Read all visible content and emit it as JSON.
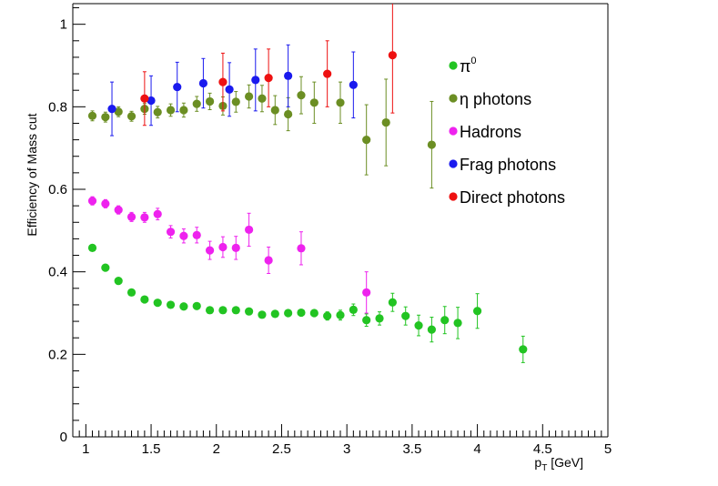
{
  "chart_data": {
    "type": "scatter",
    "title": "",
    "xlabel_main": "p",
    "xlabel_sub": "T",
    "xlabel_unit": "[GeV]",
    "ylabel": "Efficiency of Mass cut",
    "xlim": [
      0.9,
      5.0
    ],
    "ylim": [
      0,
      1.05
    ],
    "x_ticks": [
      1,
      1.5,
      2,
      2.5,
      3,
      3.5,
      4,
      4.5,
      5
    ],
    "x_tick_labels": [
      "1",
      "1.5",
      "2",
      "2.5",
      "3",
      "3.5",
      "4",
      "4.5",
      "5"
    ],
    "y_ticks": [
      0,
      0.2,
      0.4,
      0.6,
      0.8,
      1
    ],
    "y_tick_labels": [
      "0",
      "0.2",
      "0.4",
      "0.6",
      "0.8",
      "1"
    ],
    "legend_position": "top-right",
    "series": [
      {
        "name": "π⁰",
        "legend_label": "π",
        "legend_sup": "0",
        "color": "#22c422",
        "points": [
          {
            "x": 1.05,
            "y": 0.458,
            "err": 0.006
          },
          {
            "x": 1.15,
            "y": 0.41,
            "err": 0.006
          },
          {
            "x": 1.25,
            "y": 0.378,
            "err": 0.006
          },
          {
            "x": 1.35,
            "y": 0.35,
            "err": 0.006
          },
          {
            "x": 1.45,
            "y": 0.333,
            "err": 0.006
          },
          {
            "x": 1.55,
            "y": 0.325,
            "err": 0.006
          },
          {
            "x": 1.65,
            "y": 0.32,
            "err": 0.006
          },
          {
            "x": 1.75,
            "y": 0.316,
            "err": 0.006
          },
          {
            "x": 1.85,
            "y": 0.317,
            "err": 0.006
          },
          {
            "x": 1.95,
            "y": 0.307,
            "err": 0.006
          },
          {
            "x": 2.05,
            "y": 0.307,
            "err": 0.006
          },
          {
            "x": 2.15,
            "y": 0.307,
            "err": 0.006
          },
          {
            "x": 2.25,
            "y": 0.304,
            "err": 0.006
          },
          {
            "x": 2.35,
            "y": 0.296,
            "err": 0.007
          },
          {
            "x": 2.45,
            "y": 0.298,
            "err": 0.007
          },
          {
            "x": 2.55,
            "y": 0.3,
            "err": 0.008
          },
          {
            "x": 2.65,
            "y": 0.301,
            "err": 0.008
          },
          {
            "x": 2.75,
            "y": 0.3,
            "err": 0.009
          },
          {
            "x": 2.85,
            "y": 0.293,
            "err": 0.01
          },
          {
            "x": 2.95,
            "y": 0.295,
            "err": 0.012
          },
          {
            "x": 3.05,
            "y": 0.308,
            "err": 0.014
          },
          {
            "x": 3.15,
            "y": 0.283,
            "err": 0.015
          },
          {
            "x": 3.25,
            "y": 0.287,
            "err": 0.016
          },
          {
            "x": 3.35,
            "y": 0.326,
            "err": 0.022
          },
          {
            "x": 3.45,
            "y": 0.293,
            "err": 0.022
          },
          {
            "x": 3.55,
            "y": 0.27,
            "err": 0.025
          },
          {
            "x": 3.65,
            "y": 0.26,
            "err": 0.03
          },
          {
            "x": 3.75,
            "y": 0.283,
            "err": 0.033
          },
          {
            "x": 3.85,
            "y": 0.276,
            "err": 0.038
          },
          {
            "x": 4.0,
            "y": 0.305,
            "err": 0.042
          },
          {
            "x": 4.35,
            "y": 0.212,
            "err": 0.032
          }
        ]
      },
      {
        "name": "η photons",
        "legend_label": "η photons",
        "color": "#6b8e23",
        "points": [
          {
            "x": 1.05,
            "y": 0.778,
            "err": 0.012
          },
          {
            "x": 1.15,
            "y": 0.775,
            "err": 0.012
          },
          {
            "x": 1.25,
            "y": 0.788,
            "err": 0.012
          },
          {
            "x": 1.35,
            "y": 0.777,
            "err": 0.012
          },
          {
            "x": 1.45,
            "y": 0.795,
            "err": 0.013
          },
          {
            "x": 1.55,
            "y": 0.787,
            "err": 0.014
          },
          {
            "x": 1.65,
            "y": 0.792,
            "err": 0.015
          },
          {
            "x": 1.75,
            "y": 0.792,
            "err": 0.017
          },
          {
            "x": 1.85,
            "y": 0.807,
            "err": 0.018
          },
          {
            "x": 1.95,
            "y": 0.813,
            "err": 0.02
          },
          {
            "x": 2.05,
            "y": 0.802,
            "err": 0.022
          },
          {
            "x": 2.15,
            "y": 0.812,
            "err": 0.025
          },
          {
            "x": 2.25,
            "y": 0.825,
            "err": 0.028
          },
          {
            "x": 2.35,
            "y": 0.82,
            "err": 0.032
          },
          {
            "x": 2.45,
            "y": 0.792,
            "err": 0.035
          },
          {
            "x": 2.55,
            "y": 0.782,
            "err": 0.04
          },
          {
            "x": 2.65,
            "y": 0.828,
            "err": 0.045
          },
          {
            "x": 2.75,
            "y": 0.81,
            "err": 0.05
          },
          {
            "x": 2.95,
            "y": 0.81,
            "err": 0.05
          },
          {
            "x": 3.15,
            "y": 0.72,
            "err": 0.085
          },
          {
            "x": 3.3,
            "y": 0.762,
            "err": 0.105
          },
          {
            "x": 3.65,
            "y": 0.708,
            "err": 0.105
          }
        ]
      },
      {
        "name": "Hadrons",
        "legend_label": "Hadrons",
        "color": "#ee22ee",
        "points": [
          {
            "x": 1.05,
            "y": 0.572,
            "err": 0.01
          },
          {
            "x": 1.15,
            "y": 0.565,
            "err": 0.01
          },
          {
            "x": 1.25,
            "y": 0.55,
            "err": 0.01
          },
          {
            "x": 1.35,
            "y": 0.533,
            "err": 0.011
          },
          {
            "x": 1.45,
            "y": 0.532,
            "err": 0.012
          },
          {
            "x": 1.55,
            "y": 0.54,
            "err": 0.014
          },
          {
            "x": 1.65,
            "y": 0.497,
            "err": 0.015
          },
          {
            "x": 1.75,
            "y": 0.487,
            "err": 0.017
          },
          {
            "x": 1.85,
            "y": 0.489,
            "err": 0.019
          },
          {
            "x": 1.95,
            "y": 0.452,
            "err": 0.022
          },
          {
            "x": 2.05,
            "y": 0.46,
            "err": 0.025
          },
          {
            "x": 2.15,
            "y": 0.458,
            "err": 0.028
          },
          {
            "x": 2.25,
            "y": 0.502,
            "err": 0.04
          },
          {
            "x": 2.4,
            "y": 0.428,
            "err": 0.032
          },
          {
            "x": 2.65,
            "y": 0.457,
            "err": 0.04
          },
          {
            "x": 3.15,
            "y": 0.35,
            "err": 0.05
          }
        ]
      },
      {
        "name": "Frag photons",
        "legend_label": "Frag photons",
        "color": "#1a1aee",
        "points": [
          {
            "x": 1.2,
            "y": 0.795,
            "err": 0.065
          },
          {
            "x": 1.5,
            "y": 0.815,
            "err": 0.06
          },
          {
            "x": 1.7,
            "y": 0.848,
            "err": 0.06
          },
          {
            "x": 1.9,
            "y": 0.857,
            "err": 0.06
          },
          {
            "x": 2.1,
            "y": 0.842,
            "err": 0.065
          },
          {
            "x": 2.3,
            "y": 0.865,
            "err": 0.075
          },
          {
            "x": 2.55,
            "y": 0.875,
            "err": 0.075
          },
          {
            "x": 3.05,
            "y": 0.853,
            "err": 0.08
          }
        ]
      },
      {
        "name": "Direct photons",
        "legend_label": "Direct photons",
        "color": "#ee1111",
        "points": [
          {
            "x": 1.45,
            "y": 0.82,
            "err": 0.065
          },
          {
            "x": 2.05,
            "y": 0.86,
            "err": 0.07
          },
          {
            "x": 2.4,
            "y": 0.87,
            "err": 0.07
          },
          {
            "x": 2.85,
            "y": 0.88,
            "err": 0.08
          },
          {
            "x": 3.35,
            "y": 0.925,
            "err": 0.14
          }
        ]
      }
    ]
  }
}
